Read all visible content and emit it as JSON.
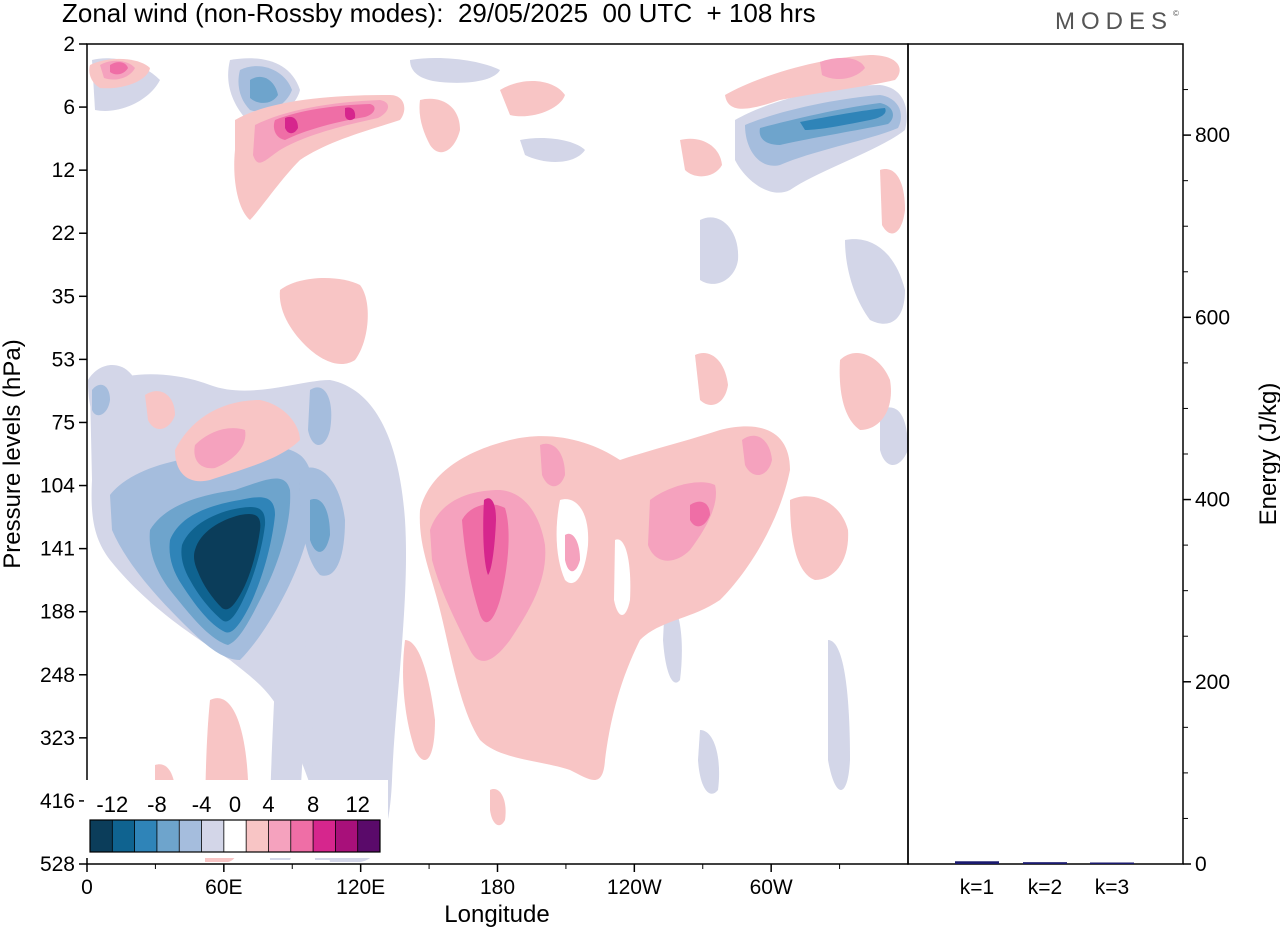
{
  "chart_data": [
    {
      "type": "heatmap",
      "title": "Zonal wind (non-Rossby modes):  29/05/2025  00 UTC  + 108 hrs",
      "xlabel": "Longitude",
      "ylabel": "Pressure levels (hPa)",
      "x_ticks": [
        "0",
        "60E",
        "120E",
        "180",
        "120W",
        "60W"
      ],
      "x_tick_values": [
        0,
        60,
        120,
        180,
        240,
        300
      ],
      "x_range": [
        0,
        360
      ],
      "y_ticks": [
        2,
        6,
        12,
        22,
        35,
        53,
        75,
        104,
        141,
        188,
        248,
        323,
        416,
        528
      ],
      "y_scale": "model levels (nonlinear)",
      "colorbar": {
        "labels": [
          "-12",
          "-8",
          "-4",
          "0",
          "4",
          "8",
          "12"
        ],
        "bounds": [
          -14,
          -12,
          -10,
          -8,
          -6,
          -4,
          -2,
          2,
          4,
          6,
          8,
          10,
          12,
          14
        ],
        "colors": [
          "#0b3d5a",
          "#0f6390",
          "#2f84b8",
          "#6ea4cc",
          "#a5bddd",
          "#d3d6e8",
          "#ffffff",
          "#f8c5c5",
          "#f5a2be",
          "#ef6ea6",
          "#d6268d",
          "#a8107a",
          "#5a0a6a"
        ]
      },
      "features": [
        {
          "name": "negative core",
          "lon": [
            40,
            75
          ],
          "level": [
            104,
            188
          ],
          "value": -14
        },
        {
          "name": "positive core",
          "lon": [
            165,
            190
          ],
          "level": [
            104,
            248
          ],
          "value": 10
        },
        {
          "name": "stratospheric positive band",
          "lon": [
            40,
            140
          ],
          "level": [
            6,
            12
          ],
          "value": 8
        },
        {
          "name": "stratospheric negative band",
          "lon": [
            290,
            360
          ],
          "level": [
            6,
            12
          ],
          "value": -6
        }
      ]
    },
    {
      "type": "bar",
      "ylabel": "Energy (J/kg)",
      "categories": [
        "k=1",
        "k=2",
        "k=3"
      ],
      "values": [
        3,
        2,
        0.5
      ],
      "ylim": [
        0,
        900
      ],
      "y_ticks": [
        0,
        200,
        400,
        600,
        800
      ],
      "bar_color": "#1a1a6e"
    }
  ],
  "logo": "MODES",
  "logo_mark": "©"
}
